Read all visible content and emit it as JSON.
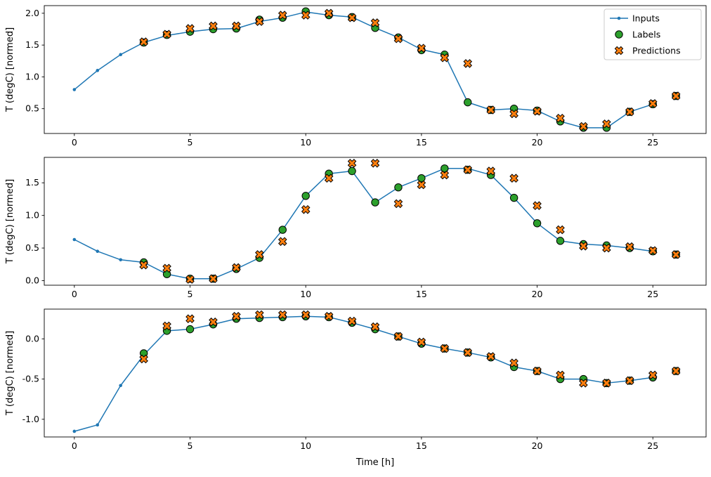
{
  "figure": {
    "xlabel": "Time [h]",
    "ylabel": "T (degC) [normed]",
    "colors": {
      "inputs": "#1f77b4",
      "labels": "#2ca02c",
      "predictions": "#ff7f0e",
      "marker_edge": "#000000"
    },
    "legend": {
      "position": "upper-right-subplot-1",
      "entries": [
        {
          "label": "Inputs",
          "marker": "line-dot",
          "color": "#1f77b4"
        },
        {
          "label": "Labels",
          "marker": "circle",
          "color": "#2ca02c"
        },
        {
          "label": "Predictions",
          "marker": "x",
          "color": "#ff7f0e"
        }
      ]
    }
  },
  "chart_data": [
    {
      "type": "line",
      "title": "",
      "xlabel": "",
      "ylabel": "T (degC) [normed]",
      "xlim": [
        -1.3,
        27.3
      ],
      "ylim": [
        0.11,
        2.12
      ],
      "xticks": [
        0,
        5,
        10,
        15,
        20,
        25
      ],
      "yticks": [
        0.5,
        1.0,
        1.5,
        2.0
      ],
      "grid": false,
      "series": [
        {
          "name": "Inputs",
          "style": "line-dot",
          "x": [
            0,
            1,
            2,
            3,
            4,
            5,
            6,
            7,
            8,
            9,
            10,
            11,
            12,
            13,
            14,
            15,
            16,
            17,
            18,
            19,
            20,
            21,
            22,
            23,
            24,
            25
          ],
          "y": [
            0.8,
            1.1,
            1.35,
            1.54,
            1.65,
            1.71,
            1.75,
            1.76,
            1.87,
            1.93,
            2.02,
            1.97,
            1.94,
            1.77,
            1.62,
            1.43,
            1.35,
            0.6,
            0.48,
            0.5,
            0.47,
            0.3,
            0.2,
            0.2,
            0.45,
            0.57
          ]
        },
        {
          "name": "Labels",
          "style": "circle",
          "x": [
            3,
            4,
            5,
            6,
            7,
            8,
            9,
            10,
            11,
            12,
            13,
            14,
            15,
            16,
            17,
            18,
            19,
            20,
            21,
            22,
            23,
            24,
            25,
            26
          ],
          "y": [
            1.54,
            1.66,
            1.71,
            1.75,
            1.76,
            1.9,
            1.93,
            2.03,
            1.97,
            1.94,
            1.77,
            1.62,
            1.42,
            1.35,
            0.6,
            0.48,
            0.5,
            0.47,
            0.3,
            0.2,
            0.2,
            0.45,
            0.57,
            0.7
          ]
        },
        {
          "name": "Predictions",
          "style": "x",
          "x": [
            3,
            4,
            5,
            6,
            7,
            8,
            9,
            10,
            11,
            12,
            13,
            14,
            15,
            16,
            17,
            18,
            19,
            20,
            21,
            22,
            23,
            24,
            25,
            26
          ],
          "y": [
            1.55,
            1.67,
            1.76,
            1.8,
            1.8,
            1.87,
            1.97,
            1.97,
            2.0,
            1.93,
            1.85,
            1.6,
            1.45,
            1.3,
            1.21,
            0.48,
            0.42,
            0.46,
            0.35,
            0.22,
            0.26,
            0.45,
            0.58,
            0.7
          ]
        }
      ]
    },
    {
      "type": "line",
      "title": "",
      "xlabel": "",
      "ylabel": "T (degC) [normed]",
      "xlim": [
        -1.3,
        27.3
      ],
      "ylim": [
        -0.07,
        1.89
      ],
      "xticks": [
        0,
        5,
        10,
        15,
        20,
        25
      ],
      "yticks": [
        0.0,
        0.5,
        1.0,
        1.5
      ],
      "grid": false,
      "series": [
        {
          "name": "Inputs",
          "style": "line-dot",
          "x": [
            0,
            1,
            2,
            3,
            4,
            5,
            6,
            7,
            8,
            9,
            10,
            11,
            12,
            13,
            14,
            15,
            16,
            17,
            18,
            19,
            20,
            21,
            22,
            23,
            24,
            25
          ],
          "y": [
            0.63,
            0.45,
            0.32,
            0.28,
            0.1,
            0.03,
            0.03,
            0.18,
            0.35,
            0.78,
            1.3,
            1.64,
            1.68,
            1.2,
            1.43,
            1.57,
            1.72,
            1.72,
            1.62,
            1.27,
            0.88,
            0.61,
            0.56,
            0.54,
            0.5,
            0.45
          ]
        },
        {
          "name": "Labels",
          "style": "circle",
          "x": [
            3,
            4,
            5,
            6,
            7,
            8,
            9,
            10,
            11,
            12,
            13,
            14,
            15,
            16,
            17,
            18,
            19,
            20,
            21,
            22,
            23,
            24,
            25,
            26
          ],
          "y": [
            0.28,
            0.1,
            0.03,
            0.03,
            0.18,
            0.35,
            0.78,
            1.3,
            1.64,
            1.68,
            1.2,
            1.43,
            1.57,
            1.72,
            1.7,
            1.62,
            1.27,
            0.88,
            0.61,
            0.56,
            0.54,
            0.5,
            0.45,
            0.4
          ]
        },
        {
          "name": "Predictions",
          "style": "x",
          "x": [
            3,
            4,
            5,
            6,
            7,
            8,
            9,
            10,
            11,
            12,
            13,
            14,
            15,
            16,
            17,
            18,
            19,
            20,
            21,
            22,
            23,
            24,
            25,
            26
          ],
          "y": [
            0.24,
            0.19,
            0.02,
            0.03,
            0.2,
            0.4,
            0.6,
            1.09,
            1.57,
            1.8,
            1.8,
            1.18,
            1.47,
            1.62,
            1.7,
            1.68,
            1.57,
            1.15,
            0.78,
            0.53,
            0.5,
            0.52,
            0.46,
            0.4
          ]
        }
      ]
    },
    {
      "type": "line",
      "title": "",
      "xlabel": "Time [h]",
      "ylabel": "T (degC) [normed]",
      "xlim": [
        -1.3,
        27.3
      ],
      "ylim": [
        -1.22,
        0.37
      ],
      "xticks": [
        0,
        5,
        10,
        15,
        20,
        25
      ],
      "yticks": [
        -1.0,
        -0.5,
        0.0
      ],
      "grid": false,
      "series": [
        {
          "name": "Inputs",
          "style": "line-dot",
          "x": [
            0,
            1,
            2,
            3,
            4,
            5,
            6,
            7,
            8,
            9,
            10,
            11,
            12,
            13,
            14,
            15,
            16,
            17,
            18,
            19,
            20,
            21,
            22,
            23,
            24,
            25
          ],
          "y": [
            -1.15,
            -1.07,
            -0.58,
            -0.2,
            0.1,
            0.12,
            0.18,
            0.25,
            0.26,
            0.27,
            0.28,
            0.27,
            0.2,
            0.12,
            0.03,
            -0.06,
            -0.12,
            -0.17,
            -0.23,
            -0.35,
            -0.4,
            -0.5,
            -0.5,
            -0.55,
            -0.52,
            -0.48
          ]
        },
        {
          "name": "Labels",
          "style": "circle",
          "x": [
            3,
            4,
            5,
            6,
            7,
            8,
            9,
            10,
            11,
            12,
            13,
            14,
            15,
            16,
            17,
            18,
            19,
            20,
            21,
            22,
            23,
            24,
            25,
            26
          ],
          "y": [
            -0.18,
            0.1,
            0.12,
            0.18,
            0.25,
            0.26,
            0.27,
            0.28,
            0.27,
            0.2,
            0.12,
            0.03,
            -0.06,
            -0.12,
            -0.17,
            -0.23,
            -0.35,
            -0.4,
            -0.5,
            -0.5,
            -0.55,
            -0.52,
            -0.48,
            -0.4
          ]
        },
        {
          "name": "Predictions",
          "style": "x",
          "x": [
            3,
            4,
            5,
            6,
            7,
            8,
            9,
            10,
            11,
            12,
            13,
            14,
            15,
            16,
            17,
            18,
            19,
            20,
            21,
            22,
            23,
            24,
            25,
            26
          ],
          "y": [
            -0.25,
            0.16,
            0.25,
            0.21,
            0.28,
            0.3,
            0.3,
            0.3,
            0.28,
            0.22,
            0.15,
            0.03,
            -0.04,
            -0.12,
            -0.17,
            -0.22,
            -0.3,
            -0.4,
            -0.45,
            -0.55,
            -0.55,
            -0.52,
            -0.45,
            -0.4
          ]
        }
      ]
    }
  ]
}
